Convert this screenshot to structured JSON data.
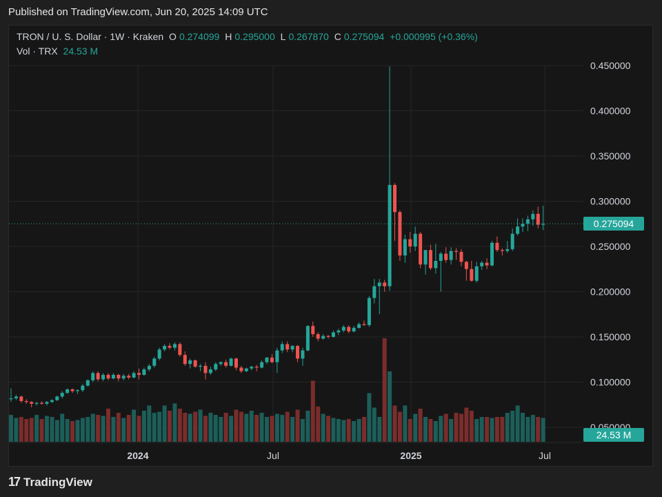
{
  "header": {
    "published": "Published on TradingView.com, Jun 20, 2025 14:09 UTC"
  },
  "legend": {
    "symbol": "TRON / U. S. Dollar · 1W · Kraken",
    "o_key": "O",
    "o_val": "0.274099",
    "h_key": "H",
    "h_val": "0.295000",
    "l_key": "L",
    "l_val": "0.267870",
    "c_key": "C",
    "c_val": "0.275094",
    "change": "+0.000995 (+0.36%)",
    "vol_key": "Vol · TRX",
    "vol_val": "24.53 M"
  },
  "price_label": "0.275094",
  "volume_label": "24.53 M",
  "footer": {
    "brand": "TradingView",
    "logo_mark": "17"
  },
  "colors": {
    "up": "#26a69a",
    "down": "#ef5350",
    "up_vol": "#1c5e59",
    "down_vol": "#7a2d2c",
    "grid": "#262626"
  },
  "chart_data": {
    "type": "candlestick",
    "timeframe": "1W",
    "x_tick_labels": [
      "2024",
      "Jul",
      "2025",
      "Jul"
    ],
    "y_tick_labels": [
      "0.450000",
      "0.400000",
      "0.350000",
      "0.300000",
      "0.250000",
      "0.200000",
      "0.150000",
      "0.100000",
      "0.050000"
    ],
    "ylim": [
      0.05,
      0.45
    ],
    "last_price": 0.275094,
    "candles": [
      [
        0.081,
        0.093,
        0.078,
        0.082
      ],
      [
        0.082,
        0.086,
        0.08,
        0.084
      ],
      [
        0.084,
        0.085,
        0.077,
        0.079
      ],
      [
        0.079,
        0.081,
        0.076,
        0.078
      ],
      [
        0.078,
        0.079,
        0.072,
        0.076
      ],
      [
        0.076,
        0.078,
        0.074,
        0.077
      ],
      [
        0.077,
        0.079,
        0.075,
        0.076
      ],
      [
        0.076,
        0.079,
        0.074,
        0.078
      ],
      [
        0.078,
        0.081,
        0.077,
        0.08
      ],
      [
        0.08,
        0.085,
        0.079,
        0.084
      ],
      [
        0.084,
        0.09,
        0.082,
        0.088
      ],
      [
        0.088,
        0.093,
        0.087,
        0.092
      ],
      [
        0.092,
        0.093,
        0.088,
        0.09
      ],
      [
        0.09,
        0.092,
        0.087,
        0.091
      ],
      [
        0.091,
        0.098,
        0.089,
        0.096
      ],
      [
        0.096,
        0.103,
        0.095,
        0.102
      ],
      [
        0.102,
        0.112,
        0.1,
        0.11
      ],
      [
        0.11,
        0.112,
        0.101,
        0.103
      ],
      [
        0.103,
        0.11,
        0.101,
        0.108
      ],
      [
        0.108,
        0.11,
        0.102,
        0.104
      ],
      [
        0.104,
        0.11,
        0.103,
        0.108
      ],
      [
        0.108,
        0.109,
        0.101,
        0.104
      ],
      [
        0.104,
        0.109,
        0.102,
        0.107
      ],
      [
        0.107,
        0.109,
        0.103,
        0.105
      ],
      [
        0.105,
        0.112,
        0.104,
        0.11
      ],
      [
        0.11,
        0.115,
        0.103,
        0.108
      ],
      [
        0.108,
        0.116,
        0.107,
        0.114
      ],
      [
        0.114,
        0.12,
        0.112,
        0.118
      ],
      [
        0.118,
        0.128,
        0.116,
        0.126
      ],
      [
        0.126,
        0.138,
        0.124,
        0.136
      ],
      [
        0.136,
        0.142,
        0.134,
        0.14
      ],
      [
        0.14,
        0.143,
        0.136,
        0.138
      ],
      [
        0.138,
        0.144,
        0.135,
        0.142
      ],
      [
        0.142,
        0.144,
        0.128,
        0.13
      ],
      [
        0.13,
        0.134,
        0.118,
        0.12
      ],
      [
        0.12,
        0.126,
        0.115,
        0.124
      ],
      [
        0.124,
        0.125,
        0.116,
        0.117
      ],
      [
        0.117,
        0.12,
        0.112,
        0.118
      ],
      [
        0.118,
        0.122,
        0.103,
        0.11
      ],
      [
        0.11,
        0.117,
        0.108,
        0.114
      ],
      [
        0.114,
        0.122,
        0.112,
        0.12
      ],
      [
        0.12,
        0.123,
        0.118,
        0.122
      ],
      [
        0.122,
        0.125,
        0.116,
        0.118
      ],
      [
        0.118,
        0.127,
        0.117,
        0.126
      ],
      [
        0.126,
        0.127,
        0.113,
        0.116
      ],
      [
        0.116,
        0.118,
        0.11,
        0.112
      ],
      [
        0.112,
        0.116,
        0.111,
        0.115
      ],
      [
        0.115,
        0.118,
        0.113,
        0.117
      ],
      [
        0.117,
        0.119,
        0.112,
        0.116
      ],
      [
        0.116,
        0.124,
        0.115,
        0.122
      ],
      [
        0.122,
        0.128,
        0.12,
        0.127
      ],
      [
        0.127,
        0.131,
        0.121,
        0.122
      ],
      [
        0.122,
        0.138,
        0.11,
        0.135
      ],
      [
        0.135,
        0.145,
        0.132,
        0.142
      ],
      [
        0.142,
        0.145,
        0.133,
        0.136
      ],
      [
        0.136,
        0.141,
        0.133,
        0.14
      ],
      [
        0.14,
        0.141,
        0.122,
        0.126
      ],
      [
        0.126,
        0.138,
        0.118,
        0.135
      ],
      [
        0.135,
        0.163,
        0.134,
        0.162
      ],
      [
        0.162,
        0.167,
        0.15,
        0.153
      ],
      [
        0.153,
        0.155,
        0.145,
        0.148
      ],
      [
        0.148,
        0.153,
        0.147,
        0.151
      ],
      [
        0.151,
        0.152,
        0.148,
        0.15
      ],
      [
        0.15,
        0.157,
        0.149,
        0.155
      ],
      [
        0.155,
        0.159,
        0.152,
        0.157
      ],
      [
        0.157,
        0.163,
        0.155,
        0.161
      ],
      [
        0.161,
        0.163,
        0.154,
        0.156
      ],
      [
        0.156,
        0.162,
        0.155,
        0.16
      ],
      [
        0.16,
        0.166,
        0.159,
        0.164
      ],
      [
        0.164,
        0.168,
        0.162,
        0.163
      ],
      [
        0.163,
        0.195,
        0.161,
        0.193
      ],
      [
        0.193,
        0.214,
        0.187,
        0.206
      ],
      [
        0.206,
        0.214,
        0.175,
        0.21
      ],
      [
        0.21,
        0.213,
        0.2,
        0.206
      ],
      [
        0.206,
        0.449,
        0.201,
        0.318
      ],
      [
        0.318,
        0.32,
        0.256,
        0.288
      ],
      [
        0.288,
        0.29,
        0.234,
        0.24
      ],
      [
        0.24,
        0.263,
        0.232,
        0.258
      ],
      [
        0.258,
        0.266,
        0.243,
        0.25
      ],
      [
        0.25,
        0.272,
        0.245,
        0.264
      ],
      [
        0.264,
        0.266,
        0.226,
        0.23
      ],
      [
        0.23,
        0.246,
        0.219,
        0.246
      ],
      [
        0.246,
        0.252,
        0.224,
        0.226
      ],
      [
        0.226,
        0.253,
        0.22,
        0.234
      ],
      [
        0.234,
        0.244,
        0.2,
        0.242
      ],
      [
        0.242,
        0.249,
        0.232,
        0.235
      ],
      [
        0.235,
        0.249,
        0.23,
        0.245
      ],
      [
        0.245,
        0.248,
        0.235,
        0.244
      ],
      [
        0.244,
        0.247,
        0.228,
        0.233
      ],
      [
        0.233,
        0.234,
        0.212,
        0.225
      ],
      [
        0.225,
        0.234,
        0.211,
        0.212
      ],
      [
        0.212,
        0.233,
        0.21,
        0.228
      ],
      [
        0.228,
        0.234,
        0.224,
        0.232
      ],
      [
        0.232,
        0.237,
        0.225,
        0.229
      ],
      [
        0.229,
        0.256,
        0.228,
        0.254
      ],
      [
        0.254,
        0.261,
        0.244,
        0.246
      ],
      [
        0.246,
        0.248,
        0.24,
        0.245
      ],
      [
        0.245,
        0.256,
        0.243,
        0.247
      ],
      [
        0.247,
        0.27,
        0.245,
        0.264
      ],
      [
        0.264,
        0.281,
        0.262,
        0.272
      ],
      [
        0.272,
        0.281,
        0.266,
        0.275
      ],
      [
        0.275,
        0.284,
        0.267,
        0.28
      ],
      [
        0.28,
        0.29,
        0.273,
        0.286
      ],
      [
        0.286,
        0.294,
        0.27,
        0.274
      ],
      [
        0.274,
        0.295,
        0.268,
        0.275
      ]
    ],
    "volume_tick_label": "24.53 M",
    "volumes": [
      26,
      23,
      24,
      22,
      23,
      26,
      22,
      25,
      24,
      21,
      27,
      22,
      20,
      21,
      23,
      24,
      27,
      26,
      25,
      32,
      24,
      28,
      23,
      26,
      31,
      25,
      30,
      35,
      28,
      29,
      35,
      30,
      37,
      32,
      28,
      27,
      29,
      31,
      25,
      28,
      26,
      24,
      28,
      25,
      31,
      29,
      27,
      30,
      26,
      28,
      24,
      25,
      27,
      26,
      29,
      24,
      31,
      22,
      30,
      59,
      34,
      27,
      25,
      23,
      22,
      21,
      22,
      20,
      22,
      24,
      47,
      33,
      24,
      100,
      68,
      35,
      29,
      35,
      22,
      27,
      32,
      24,
      22,
      20,
      25,
      27,
      22,
      28,
      27,
      33,
      30,
      22,
      24,
      24,
      23,
      24,
      24,
      28,
      30,
      35,
      28,
      24,
      26,
      24,
      23
    ]
  }
}
